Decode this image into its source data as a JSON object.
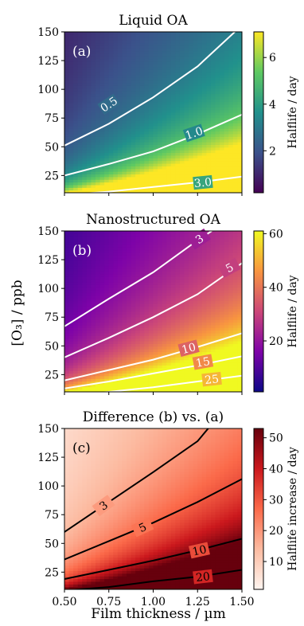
{
  "figure": {
    "shared_ylabel": "[O₃] / ppb",
    "xlabel": "Film thickness / µm",
    "x_ticks": [
      "0.50",
      "0.75",
      "1.00",
      "1.25",
      "1.50"
    ],
    "y_ticks": [
      "25",
      "50",
      "75",
      "100",
      "125",
      "150"
    ]
  },
  "chart_data": [
    {
      "type": "heatmap",
      "title": "Liquid OA",
      "panel_label": "(a)",
      "colormap": "viridis",
      "xlim": [
        0.5,
        1.5
      ],
      "ylim": [
        10,
        150
      ],
      "colorbar": {
        "label": "Halflife / day",
        "range": [
          0.2,
          7.1
        ],
        "ticks": [
          2,
          4,
          6
        ]
      },
      "contour_color": "#ffffff",
      "contours": [
        {
          "label": "0.5",
          "label_at": [
            0.75,
            87
          ],
          "points": [
            [
              0.5,
              51
            ],
            [
              0.75,
              70
            ],
            [
              1.0,
              93
            ],
            [
              1.25,
              120
            ],
            [
              1.46,
              150
            ]
          ]
        },
        {
          "label": "1.0",
          "label_at": [
            1.23,
            62
          ],
          "points": [
            [
              0.5,
              25
            ],
            [
              0.75,
              35
            ],
            [
              1.0,
              46
            ],
            [
              1.25,
              61
            ],
            [
              1.5,
              78
            ]
          ]
        },
        {
          "label": "3.0",
          "label_at": [
            1.28,
            19
          ],
          "points": [
            [
              0.5,
              8
            ],
            [
              0.75,
              11
            ],
            [
              1.0,
              15
            ],
            [
              1.25,
              19
            ],
            [
              1.5,
              24
            ]
          ]
        }
      ]
    },
    {
      "type": "heatmap",
      "title": "Nanostructured OA",
      "panel_label": "(b)",
      "colormap": "plasma",
      "xlim": [
        0.5,
        1.5
      ],
      "ylim": [
        10,
        150
      ],
      "colorbar": {
        "label": "Halflife / day",
        "range": [
          1,
          61
        ],
        "ticks": [
          20,
          40,
          60
        ]
      },
      "contour_color": "#ffffff",
      "contours": [
        {
          "label": "3",
          "label_at": [
            1.26,
            143
          ],
          "points": [
            [
              0.5,
              67
            ],
            [
              0.75,
              91
            ],
            [
              1.0,
              114
            ],
            [
              1.26,
              143
            ],
            [
              1.33,
              150
            ]
          ]
        },
        {
          "label": "5",
          "label_at": [
            1.43,
            118
          ],
          "points": [
            [
              0.5,
              40
            ],
            [
              0.75,
              57
            ],
            [
              1.0,
              75
            ],
            [
              1.25,
              95
            ],
            [
              1.5,
              122
            ]
          ]
        },
        {
          "label": "10",
          "label_at": [
            1.2,
            48
          ],
          "points": [
            [
              0.5,
              20
            ],
            [
              0.75,
              29
            ],
            [
              1.0,
              38
            ],
            [
              1.25,
              49
            ],
            [
              1.5,
              61
            ]
          ]
        },
        {
          "label": "15",
          "label_at": [
            1.28,
            36
          ],
          "points": [
            [
              0.5,
              13
            ],
            [
              0.75,
              19
            ],
            [
              1.0,
              26
            ],
            [
              1.25,
              33
            ],
            [
              1.5,
              41
            ]
          ]
        },
        {
          "label": "25",
          "label_at": [
            1.33,
            21
          ],
          "points": [
            [
              0.5,
              7
            ],
            [
              0.75,
              10
            ],
            [
              1.0,
              14
            ],
            [
              1.25,
              19
            ],
            [
              1.5,
              24
            ]
          ]
        }
      ]
    },
    {
      "type": "heatmap",
      "title": "Difference (b) vs. (a)",
      "panel_label": "(c)",
      "colormap": "reds",
      "xlim": [
        0.5,
        1.5
      ],
      "ylim": [
        10,
        150
      ],
      "colorbar": {
        "label": "Halflife increase / day",
        "range": [
          1,
          53
        ],
        "ticks": [
          10,
          20,
          30,
          40,
          50
        ]
      },
      "contour_color": "#000000",
      "contours": [
        {
          "label": "3",
          "label_at": [
            0.72,
            83
          ],
          "points": [
            [
              0.5,
              60
            ],
            [
              0.75,
              86
            ],
            [
              1.0,
              112
            ],
            [
              1.25,
              139
            ],
            [
              1.31,
              150
            ]
          ]
        },
        {
          "label": "5",
          "label_at": [
            0.94,
            64
          ],
          "points": [
            [
              0.5,
              36
            ],
            [
              0.75,
              52
            ],
            [
              1.0,
              68
            ],
            [
              1.25,
              86
            ],
            [
              1.5,
              106
            ]
          ]
        },
        {
          "label": "10",
          "label_at": [
            1.26,
            44
          ],
          "points": [
            [
              0.5,
              19
            ],
            [
              0.75,
              27
            ],
            [
              1.0,
              35
            ],
            [
              1.25,
              44
            ],
            [
              1.5,
              54
            ]
          ]
        },
        {
          "label": "20",
          "label_at": [
            1.28,
            21
          ],
          "points": [
            [
              0.5,
              9
            ],
            [
              0.75,
              12
            ],
            [
              1.0,
              17
            ],
            [
              1.25,
              21
            ],
            [
              1.5,
              27
            ]
          ]
        }
      ]
    }
  ]
}
